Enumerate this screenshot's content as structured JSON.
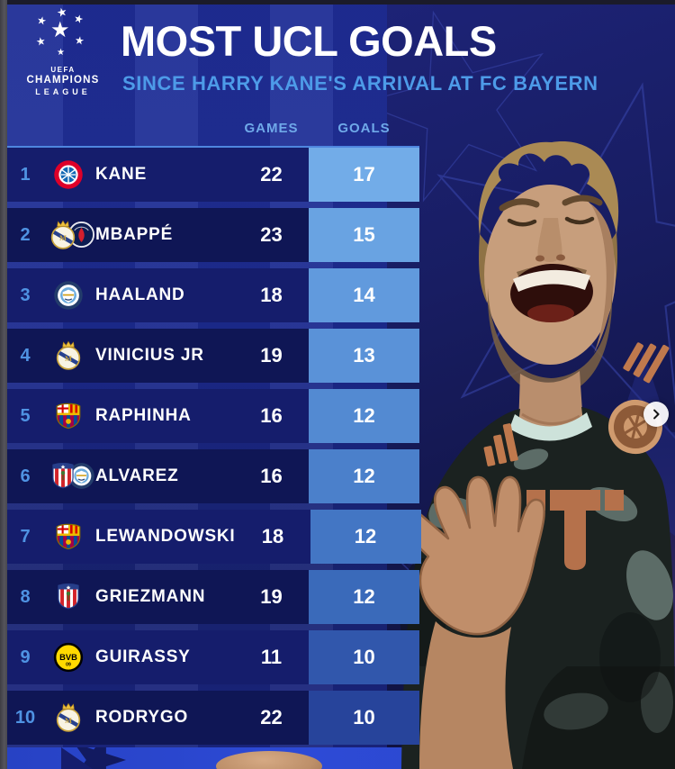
{
  "header": {
    "logo": {
      "org": "UEFA",
      "competition_line1": "CHAMPIONS",
      "competition_line2": "LEAGUE"
    },
    "title": "MOST UCL GOALS",
    "subtitle": "SINCE HARRY KANE'S ARRIVAL AT FC BAYERN"
  },
  "table": {
    "col_games": "GAMES",
    "col_goals": "GOALS",
    "rows": [
      {
        "rank": "1",
        "player": "KANE",
        "club_badge": "bayern-munich",
        "games": "22",
        "goals": "17"
      },
      {
        "rank": "2",
        "player": "MBAPPÉ",
        "club_badge": "real-madrid",
        "club_badge_secondary": "psg",
        "games": "23",
        "goals": "15"
      },
      {
        "rank": "3",
        "player": "HAALAND",
        "club_badge": "manchester-city",
        "games": "18",
        "goals": "14"
      },
      {
        "rank": "4",
        "player": "VINICIUS JR",
        "club_badge": "real-madrid",
        "games": "19",
        "goals": "13"
      },
      {
        "rank": "5",
        "player": "RAPHINHA",
        "club_badge": "barcelona",
        "games": "16",
        "goals": "12"
      },
      {
        "rank": "6",
        "player": "ALVAREZ",
        "club_badge": "atletico-madrid",
        "club_badge_secondary": "manchester-city",
        "games": "16",
        "goals": "12"
      },
      {
        "rank": "7",
        "player": "LEWANDOWSKI",
        "club_badge": "barcelona",
        "games": "18",
        "goals": "12"
      },
      {
        "rank": "8",
        "player": "GRIEZMANN",
        "club_badge": "atletico-madrid",
        "games": "19",
        "goals": "12"
      },
      {
        "rank": "9",
        "player": "GUIRASSY",
        "club_badge": "borussia-dortmund",
        "games": "11",
        "goals": "10"
      },
      {
        "rank": "10",
        "player": "RODRYGO",
        "club_badge": "real-madrid",
        "games": "22",
        "goals": "10"
      }
    ]
  },
  "photo": {
    "subject": "Harry Kane celebrating",
    "carousel_next_icon": "chevron-right"
  },
  "colors": {
    "accent_blue": "#4D9BE8",
    "goals_column_top": "#72ACE8",
    "goals_column_bottom": "#27449B",
    "row_navy": "#151D6C",
    "background_blue": "#1D2B92"
  }
}
